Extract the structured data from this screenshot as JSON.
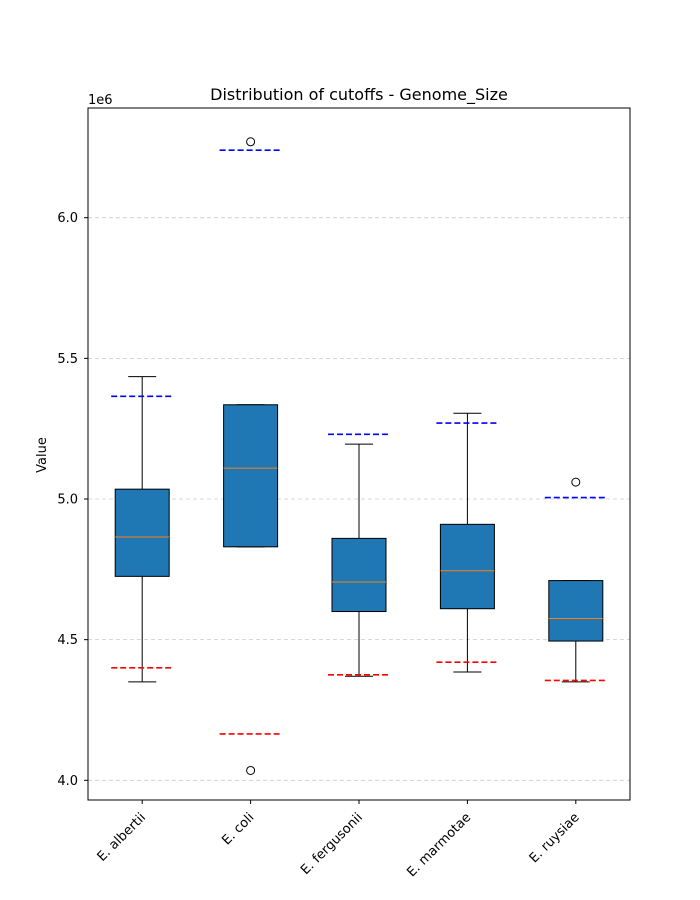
{
  "chart_data": {
    "type": "box",
    "title": "Distribution of cutoffs - Genome_Size",
    "xlabel": "",
    "ylabel": "Value",
    "y_offset_label": "1e6",
    "y_scale": 1000000,
    "ylim": [
      3930000,
      6390000
    ],
    "yticks": [
      4000000,
      4500000,
      5000000,
      5500000,
      6000000
    ],
    "ytick_labels": [
      "4.0",
      "4.5",
      "5.0",
      "5.5",
      "6.0"
    ],
    "grid": "y-dashed",
    "categories": [
      "E. albertii",
      "E. coli",
      "E. fergusonii",
      "E. marmotae",
      "E. ruysiae"
    ],
    "boxes": [
      {
        "whisker_low": 4350000,
        "q1": 4725000,
        "median": 4865000,
        "q3": 5035000,
        "whisker_high": 5435000,
        "outliers": [],
        "cutoff_low": 4400000,
        "cutoff_high": 5365000
      },
      {
        "whisker_low": 4830000,
        "q1": 4830000,
        "median": 5110000,
        "q3": 5335000,
        "whisker_high": 5335000,
        "outliers": [
          6270000,
          4035000
        ],
        "cutoff_low": 4165000,
        "cutoff_high": 6240000
      },
      {
        "whisker_low": 4370000,
        "q1": 4600000,
        "median": 4705000,
        "q3": 4860000,
        "whisker_high": 5195000,
        "outliers": [],
        "cutoff_low": 4375000,
        "cutoff_high": 5230000
      },
      {
        "whisker_low": 4385000,
        "q1": 4610000,
        "median": 4745000,
        "q3": 4910000,
        "whisker_high": 5305000,
        "outliers": [],
        "cutoff_low": 4420000,
        "cutoff_high": 5270000
      },
      {
        "whisker_low": 4350000,
        "q1": 4495000,
        "median": 4575000,
        "q3": 4710000,
        "whisker_high": 4710000,
        "outliers": [
          5060000
        ],
        "cutoff_low": 4355000,
        "cutoff_high": 5005000
      }
    ],
    "colors": {
      "box_fill": "#1f77b4",
      "median": "#ff7f0e",
      "cutoff_high": "#0000ff",
      "cutoff_low": "#ff0000",
      "grid": "#cccccc"
    }
  }
}
